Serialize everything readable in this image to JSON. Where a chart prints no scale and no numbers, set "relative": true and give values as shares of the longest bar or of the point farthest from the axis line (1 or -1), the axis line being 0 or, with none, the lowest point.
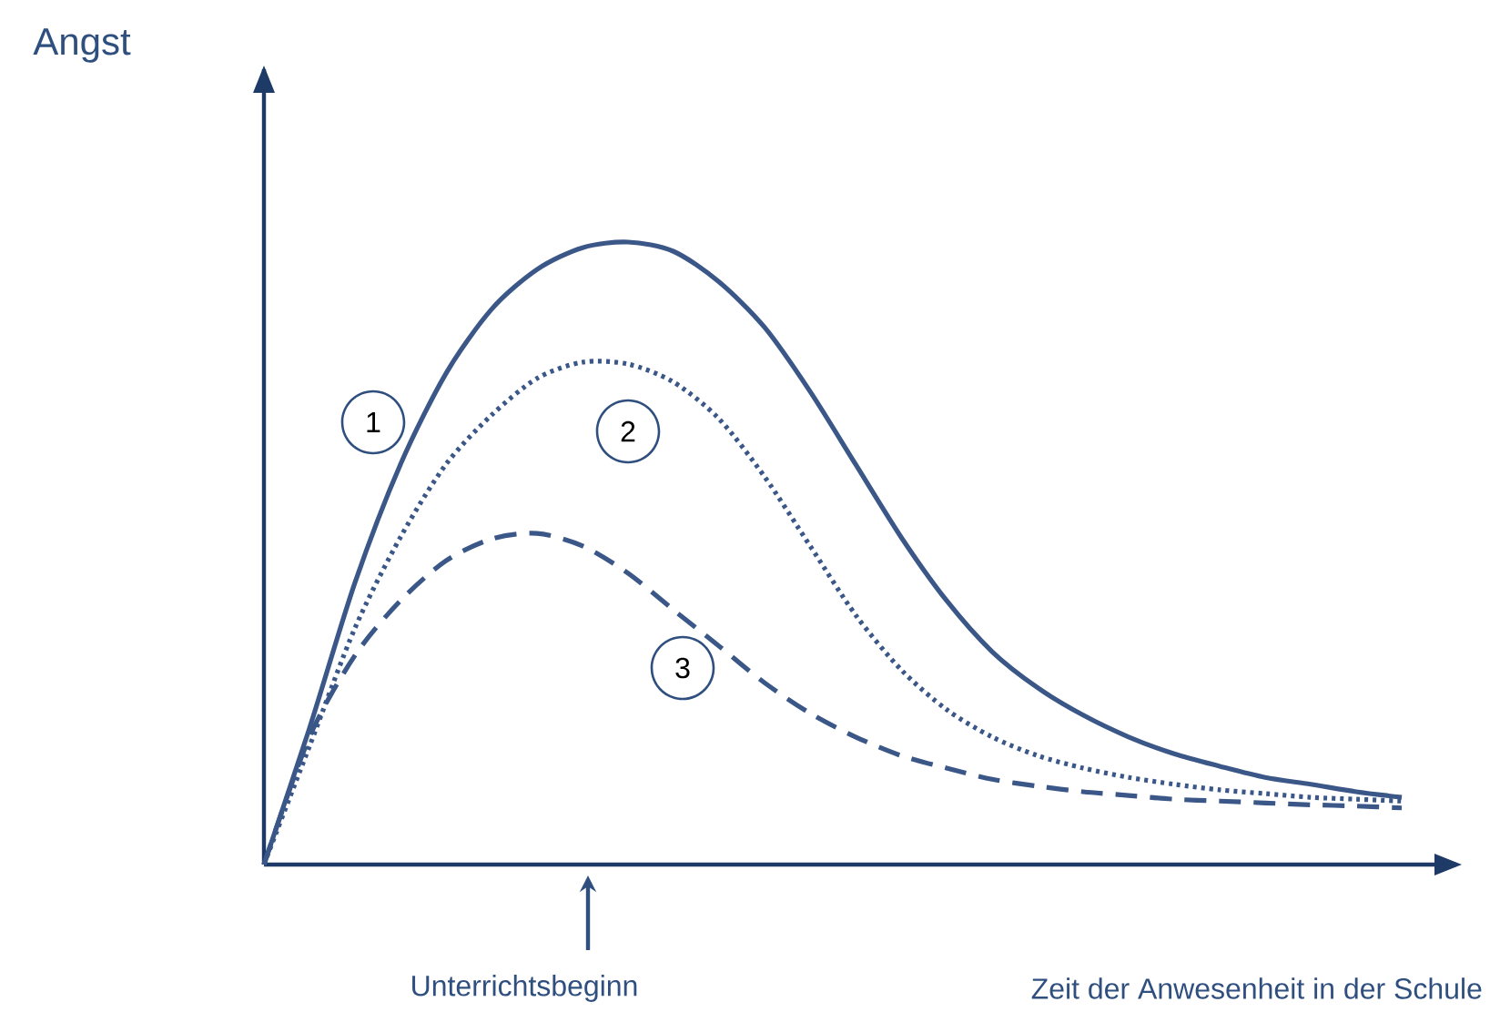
{
  "chart_data": {
    "type": "line",
    "relative": true,
    "xlabel": "Zeit der Anwesenheit in der Schule",
    "categories": [
      null,
      null,
      null,
      null,
      null,
      null,
      null,
      null,
      null,
      null,
      null,
      null,
      null,
      null,
      null,
      null,
      null,
      null,
      null,
      null,
      null,
      null,
      null,
      null,
      null,
      null
    ],
    "series": [
      {
        "name": "1",
        "color": "#3a5788",
        "line_style": "solid",
        "values": [
          0,
          0.219,
          0.453,
          0.643,
          0.789,
          0.892,
          0.956,
          0.991,
          1,
          0.985,
          0.936,
          0.863,
          0.76,
          0.643,
          0.526,
          0.424,
          0.342,
          0.284,
          0.24,
          0.205,
          0.178,
          0.158,
          0.14,
          0.129,
          0.117,
          0.108
        ]
      },
      {
        "name": "2",
        "color": "#3a5788",
        "line_style": "dotted",
        "values": [
          0,
          0.19,
          0.38,
          0.526,
          0.643,
          0.722,
          0.781,
          0.807,
          0.804,
          0.775,
          0.716,
          0.623,
          0.512,
          0.401,
          0.313,
          0.249,
          0.205,
          0.175,
          0.155,
          0.14,
          0.129,
          0.12,
          0.114,
          0.108,
          0.105,
          0.102
        ]
      },
      {
        "name": "3",
        "color": "#3a5788",
        "line_style": "dashed",
        "values": [
          0,
          0.205,
          0.336,
          0.424,
          0.488,
          0.523,
          0.532,
          0.512,
          0.468,
          0.409,
          0.351,
          0.292,
          0.243,
          0.205,
          0.175,
          0.155,
          0.137,
          0.126,
          0.117,
          0.111,
          0.105,
          0.102,
          0.099,
          0.096,
          0.094,
          0.091
        ]
      }
    ],
    "annotations": [
      "Angst",
      "Unterrichtsbeginn"
    ],
    "marker": "none",
    "tick_labels": false
  }
}
